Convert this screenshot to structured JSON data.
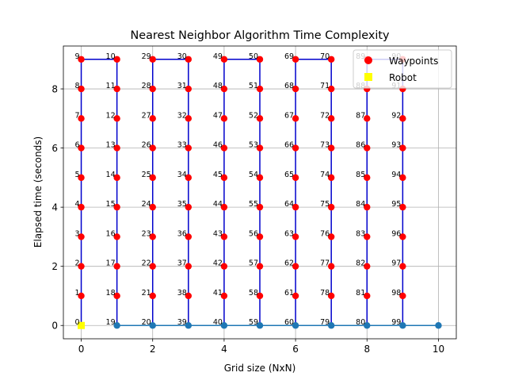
{
  "chart_data": {
    "type": "scatter",
    "title": "Nearest Neighbor Algorithm Time Complexity",
    "xlabel": "Grid size (NxN)",
    "ylabel": "Elapsed time (seconds)",
    "xlim": [
      -0.5,
      10.5
    ],
    "ylim": [
      -0.45,
      9.45
    ],
    "xticks": [
      0,
      2,
      4,
      6,
      8,
      10
    ],
    "yticks": [
      0,
      2,
      4,
      6,
      8
    ],
    "grid": true,
    "legend_position": "top-right",
    "legend": [
      {
        "label": "Waypoints",
        "color": "#ff0000",
        "marker": "circle"
      },
      {
        "label": "Robot",
        "color": "#ffff00",
        "marker": "square"
      }
    ],
    "waypoints": {
      "name": "Waypoints",
      "color": "#ff0000",
      "x": [
        0,
        0,
        0,
        0,
        0,
        0,
        0,
        0,
        0,
        0,
        1,
        1,
        1,
        1,
        1,
        1,
        1,
        1,
        1,
        1,
        2,
        2,
        2,
        2,
        2,
        2,
        2,
        2,
        2,
        2,
        3,
        3,
        3,
        3,
        3,
        3,
        3,
        3,
        3,
        3,
        4,
        4,
        4,
        4,
        4,
        4,
        4,
        4,
        4,
        4,
        5,
        5,
        5,
        5,
        5,
        5,
        5,
        5,
        5,
        5,
        6,
        6,
        6,
        6,
        6,
        6,
        6,
        6,
        6,
        6,
        7,
        7,
        7,
        7,
        7,
        7,
        7,
        7,
        7,
        7,
        8,
        8,
        8,
        8,
        8,
        8,
        8,
        8,
        8,
        8,
        9,
        9,
        9,
        9,
        9,
        9,
        9,
        9,
        9,
        9
      ],
      "y": [
        0,
        1,
        2,
        3,
        4,
        5,
        6,
        7,
        8,
        9,
        9,
        8,
        7,
        6,
        5,
        4,
        3,
        2,
        1,
        0,
        0,
        1,
        2,
        3,
        4,
        5,
        6,
        7,
        8,
        9,
        9,
        8,
        7,
        6,
        5,
        4,
        3,
        2,
        1,
        0,
        0,
        1,
        2,
        3,
        4,
        5,
        6,
        7,
        8,
        9,
        9,
        8,
        7,
        6,
        5,
        4,
        3,
        2,
        1,
        0,
        0,
        1,
        2,
        3,
        4,
        5,
        6,
        7,
        8,
        9,
        9,
        8,
        7,
        6,
        5,
        4,
        3,
        2,
        1,
        0,
        0,
        1,
        2,
        3,
        4,
        5,
        6,
        7,
        8,
        9,
        9,
        8,
        7,
        6,
        5,
        4,
        3,
        2,
        1,
        0
      ]
    },
    "robot": {
      "name": "Robot",
      "color": "#ffff00",
      "x": [
        0
      ],
      "y": [
        0
      ]
    },
    "path_color": "#0000cc",
    "return_path": {
      "color": "#1f77b4",
      "x": [
        1,
        2,
        3,
        4,
        5,
        6,
        7,
        8,
        9,
        10
      ],
      "y": [
        0,
        0,
        0,
        0,
        0,
        0,
        0,
        0,
        0,
        0
      ]
    },
    "point_labels": [
      "0",
      "1",
      "2",
      "3",
      "4",
      "5",
      "6",
      "7",
      "8",
      "9",
      "10",
      "11",
      "12",
      "13",
      "14",
      "15",
      "16",
      "17",
      "18",
      "19",
      "20",
      "21",
      "22",
      "23",
      "24",
      "25",
      "26",
      "27",
      "28",
      "29",
      "30",
      "31",
      "32",
      "33",
      "34",
      "35",
      "36",
      "37",
      "38",
      "39",
      "40",
      "41",
      "42",
      "43",
      "44",
      "45",
      "46",
      "47",
      "48",
      "49",
      "50",
      "51",
      "52",
      "53",
      "54",
      "55",
      "56",
      "57",
      "58",
      "59",
      "60",
      "61",
      "62",
      "63",
      "64",
      "65",
      "66",
      "67",
      "68",
      "69",
      "70",
      "71",
      "72",
      "73",
      "74",
      "75",
      "76",
      "77",
      "78",
      "79",
      "80",
      "81",
      "82",
      "83",
      "84",
      "85",
      "86",
      "87",
      "88",
      "89",
      "90",
      "91",
      "92",
      "93",
      "94",
      "95",
      "96",
      "97",
      "98",
      "99"
    ]
  }
}
